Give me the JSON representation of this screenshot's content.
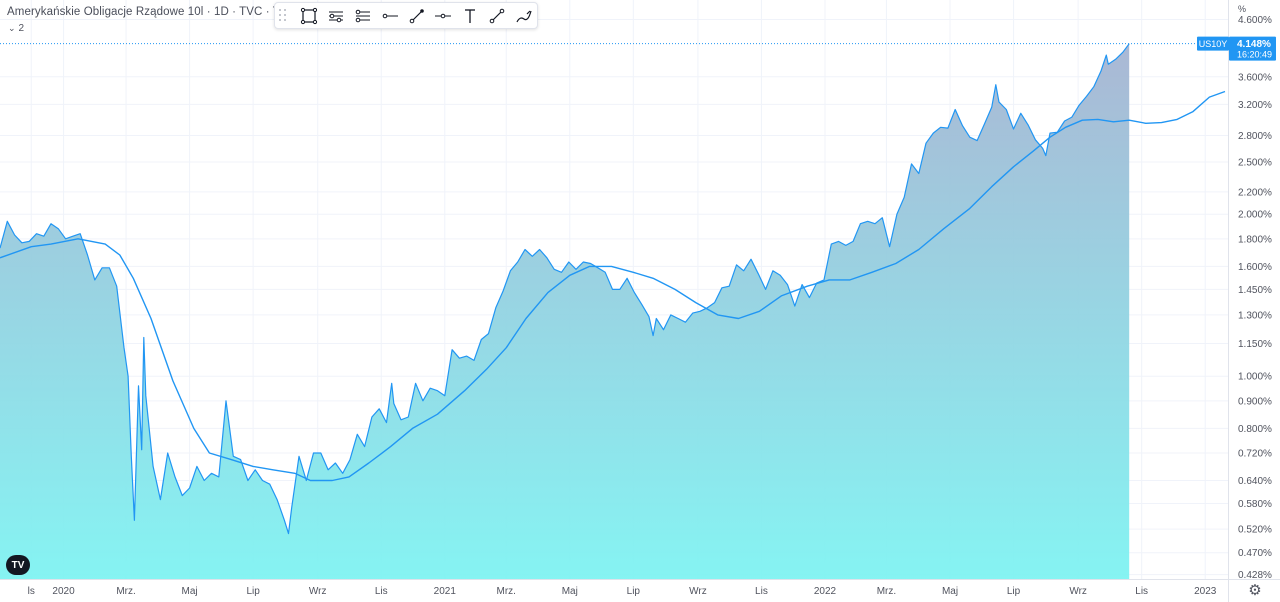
{
  "legend": {
    "title": "Amerykańskie Obligacje Rządowe 10l · 1D · TVC · Trad",
    "collapse_count": "2"
  },
  "toolbar": {
    "tools": [
      "rectangle-tool",
      "long-position-tool",
      "short-position-tool",
      "horizontal-ray-tool",
      "trend-line-tool",
      "horizontal-line-tool",
      "text-tool",
      "ray-tool",
      "brush-tool"
    ]
  },
  "price_axis": {
    "unit": "%",
    "badge_symbol": "US10Y",
    "badge_price": "4.148%",
    "badge_time": "16:20:49",
    "badge_color": "#2196f3"
  },
  "chart_data": {
    "type": "area",
    "series": [
      {
        "name": "US10Y",
        "color": "#2196f3",
        "points": [
          [
            "2019-11-01",
            1.73
          ],
          [
            "2019-11-08",
            1.94
          ],
          [
            "2019-11-15",
            1.83
          ],
          [
            "2019-11-22",
            1.77
          ],
          [
            "2019-11-29",
            1.78
          ],
          [
            "2019-12-06",
            1.84
          ],
          [
            "2019-12-13",
            1.82
          ],
          [
            "2019-12-20",
            1.92
          ],
          [
            "2019-12-27",
            1.88
          ],
          [
            "2020-01-03",
            1.8
          ],
          [
            "2020-01-10",
            1.82
          ],
          [
            "2020-01-17",
            1.84
          ],
          [
            "2020-01-24",
            1.68
          ],
          [
            "2020-01-31",
            1.51
          ],
          [
            "2020-02-07",
            1.59
          ],
          [
            "2020-02-14",
            1.59
          ],
          [
            "2020-02-21",
            1.47
          ],
          [
            "2020-02-28",
            1.13
          ],
          [
            "2020-03-03",
            1.0
          ],
          [
            "2020-03-06",
            0.71
          ],
          [
            "2020-03-09",
            0.54
          ],
          [
            "2020-03-13",
            0.96
          ],
          [
            "2020-03-16",
            0.73
          ],
          [
            "2020-03-18",
            1.18
          ],
          [
            "2020-03-20",
            0.92
          ],
          [
            "2020-03-27",
            0.68
          ],
          [
            "2020-04-03",
            0.59
          ],
          [
            "2020-04-10",
            0.72
          ],
          [
            "2020-04-17",
            0.65
          ],
          [
            "2020-04-24",
            0.6
          ],
          [
            "2020-05-01",
            0.62
          ],
          [
            "2020-05-08",
            0.68
          ],
          [
            "2020-05-15",
            0.64
          ],
          [
            "2020-05-22",
            0.66
          ],
          [
            "2020-05-29",
            0.65
          ],
          [
            "2020-06-05",
            0.9
          ],
          [
            "2020-06-12",
            0.71
          ],
          [
            "2020-06-19",
            0.7
          ],
          [
            "2020-06-26",
            0.64
          ],
          [
            "2020-07-03",
            0.67
          ],
          [
            "2020-07-10",
            0.64
          ],
          [
            "2020-07-17",
            0.63
          ],
          [
            "2020-07-24",
            0.59
          ],
          [
            "2020-07-31",
            0.54
          ],
          [
            "2020-08-04",
            0.51
          ],
          [
            "2020-08-07",
            0.57
          ],
          [
            "2020-08-14",
            0.71
          ],
          [
            "2020-08-21",
            0.64
          ],
          [
            "2020-08-28",
            0.72
          ],
          [
            "2020-09-04",
            0.72
          ],
          [
            "2020-09-11",
            0.67
          ],
          [
            "2020-09-18",
            0.69
          ],
          [
            "2020-09-25",
            0.66
          ],
          [
            "2020-10-02",
            0.7
          ],
          [
            "2020-10-09",
            0.78
          ],
          [
            "2020-10-16",
            0.74
          ],
          [
            "2020-10-23",
            0.84
          ],
          [
            "2020-10-30",
            0.87
          ],
          [
            "2020-11-06",
            0.82
          ],
          [
            "2020-11-11",
            0.97
          ],
          [
            "2020-11-13",
            0.89
          ],
          [
            "2020-11-20",
            0.83
          ],
          [
            "2020-11-27",
            0.84
          ],
          [
            "2020-12-04",
            0.97
          ],
          [
            "2020-12-11",
            0.9
          ],
          [
            "2020-12-18",
            0.95
          ],
          [
            "2020-12-25",
            0.94
          ],
          [
            "2021-01-01",
            0.92
          ],
          [
            "2021-01-08",
            1.12
          ],
          [
            "2021-01-15",
            1.08
          ],
          [
            "2021-01-22",
            1.09
          ],
          [
            "2021-01-29",
            1.07
          ],
          [
            "2021-02-05",
            1.17
          ],
          [
            "2021-02-12",
            1.2
          ],
          [
            "2021-02-19",
            1.34
          ],
          [
            "2021-02-26",
            1.44
          ],
          [
            "2021-03-05",
            1.57
          ],
          [
            "2021-03-12",
            1.63
          ],
          [
            "2021-03-19",
            1.72
          ],
          [
            "2021-03-26",
            1.67
          ],
          [
            "2021-04-02",
            1.72
          ],
          [
            "2021-04-09",
            1.66
          ],
          [
            "2021-04-16",
            1.58
          ],
          [
            "2021-04-23",
            1.56
          ],
          [
            "2021-04-30",
            1.63
          ],
          [
            "2021-05-07",
            1.58
          ],
          [
            "2021-05-14",
            1.63
          ],
          [
            "2021-05-21",
            1.62
          ],
          [
            "2021-05-28",
            1.59
          ],
          [
            "2021-06-04",
            1.56
          ],
          [
            "2021-06-11",
            1.45
          ],
          [
            "2021-06-18",
            1.45
          ],
          [
            "2021-06-25",
            1.52
          ],
          [
            "2021-07-02",
            1.43
          ],
          [
            "2021-07-09",
            1.36
          ],
          [
            "2021-07-16",
            1.29
          ],
          [
            "2021-07-20",
            1.19
          ],
          [
            "2021-07-23",
            1.28
          ],
          [
            "2021-07-30",
            1.22
          ],
          [
            "2021-08-06",
            1.3
          ],
          [
            "2021-08-13",
            1.28
          ],
          [
            "2021-08-20",
            1.26
          ],
          [
            "2021-08-27",
            1.31
          ],
          [
            "2021-09-03",
            1.32
          ],
          [
            "2021-09-10",
            1.34
          ],
          [
            "2021-09-17",
            1.37
          ],
          [
            "2021-09-24",
            1.46
          ],
          [
            "2021-10-01",
            1.47
          ],
          [
            "2021-10-08",
            1.61
          ],
          [
            "2021-10-15",
            1.57
          ],
          [
            "2021-10-22",
            1.65
          ],
          [
            "2021-10-29",
            1.55
          ],
          [
            "2021-11-05",
            1.45
          ],
          [
            "2021-11-12",
            1.57
          ],
          [
            "2021-11-19",
            1.54
          ],
          [
            "2021-11-26",
            1.48
          ],
          [
            "2021-12-03",
            1.35
          ],
          [
            "2021-12-10",
            1.48
          ],
          [
            "2021-12-17",
            1.4
          ],
          [
            "2021-12-24",
            1.49
          ],
          [
            "2021-12-31",
            1.51
          ],
          [
            "2022-01-07",
            1.76
          ],
          [
            "2022-01-14",
            1.78
          ],
          [
            "2022-01-21",
            1.75
          ],
          [
            "2022-01-28",
            1.78
          ],
          [
            "2022-02-04",
            1.92
          ],
          [
            "2022-02-11",
            1.94
          ],
          [
            "2022-02-18",
            1.92
          ],
          [
            "2022-02-25",
            1.97
          ],
          [
            "2022-03-04",
            1.74
          ],
          [
            "2022-03-11",
            2.0
          ],
          [
            "2022-03-18",
            2.15
          ],
          [
            "2022-03-25",
            2.48
          ],
          [
            "2022-04-01",
            2.38
          ],
          [
            "2022-04-08",
            2.71
          ],
          [
            "2022-04-15",
            2.83
          ],
          [
            "2022-04-22",
            2.9
          ],
          [
            "2022-04-29",
            2.89
          ],
          [
            "2022-05-06",
            3.13
          ],
          [
            "2022-05-13",
            2.92
          ],
          [
            "2022-05-20",
            2.78
          ],
          [
            "2022-05-27",
            2.74
          ],
          [
            "2022-06-03",
            2.94
          ],
          [
            "2022-06-10",
            3.16
          ],
          [
            "2022-06-14",
            3.48
          ],
          [
            "2022-06-17",
            3.23
          ],
          [
            "2022-06-24",
            3.13
          ],
          [
            "2022-07-01",
            2.88
          ],
          [
            "2022-07-08",
            3.08
          ],
          [
            "2022-07-15",
            2.93
          ],
          [
            "2022-07-22",
            2.75
          ],
          [
            "2022-07-29",
            2.65
          ],
          [
            "2022-08-01",
            2.57
          ],
          [
            "2022-08-05",
            2.83
          ],
          [
            "2022-08-12",
            2.84
          ],
          [
            "2022-08-19",
            2.98
          ],
          [
            "2022-08-26",
            3.03
          ],
          [
            "2022-09-02",
            3.19
          ],
          [
            "2022-09-09",
            3.31
          ],
          [
            "2022-09-16",
            3.45
          ],
          [
            "2022-09-23",
            3.69
          ],
          [
            "2022-09-28",
            3.95
          ],
          [
            "2022-09-30",
            3.8
          ],
          [
            "2022-10-07",
            3.88
          ],
          [
            "2022-10-14",
            4.0
          ],
          [
            "2022-10-20",
            4.148
          ]
        ]
      },
      {
        "name": "",
        "color": "#2196f3",
        "points": [
          [
            "2019-11-01",
            1.66
          ],
          [
            "2019-12-01",
            1.74
          ],
          [
            "2019-12-20",
            1.76
          ],
          [
            "2020-01-15",
            1.8
          ],
          [
            "2020-02-10",
            1.76
          ],
          [
            "2020-02-24",
            1.68
          ],
          [
            "2020-03-08",
            1.52
          ],
          [
            "2020-03-25",
            1.28
          ],
          [
            "2020-04-15",
            0.98
          ],
          [
            "2020-05-05",
            0.8
          ],
          [
            "2020-05-20",
            0.72
          ],
          [
            "2020-06-10",
            0.7
          ],
          [
            "2020-07-01",
            0.68
          ],
          [
            "2020-07-20",
            0.67
          ],
          [
            "2020-08-10",
            0.66
          ],
          [
            "2020-08-25",
            0.64
          ],
          [
            "2020-09-15",
            0.64
          ],
          [
            "2020-10-01",
            0.65
          ],
          [
            "2020-10-20",
            0.69
          ],
          [
            "2020-11-10",
            0.74
          ],
          [
            "2020-12-01",
            0.8
          ],
          [
            "2020-12-25",
            0.85
          ],
          [
            "2021-01-20",
            0.94
          ],
          [
            "2021-02-10",
            1.03
          ],
          [
            "2021-03-01",
            1.13
          ],
          [
            "2021-03-20",
            1.28
          ],
          [
            "2021-04-10",
            1.43
          ],
          [
            "2021-05-01",
            1.54
          ],
          [
            "2021-05-20",
            1.6
          ],
          [
            "2021-06-10",
            1.6
          ],
          [
            "2021-07-01",
            1.56
          ],
          [
            "2021-07-20",
            1.52
          ],
          [
            "2021-08-10",
            1.45
          ],
          [
            "2021-08-30",
            1.37
          ],
          [
            "2021-09-20",
            1.3
          ],
          [
            "2021-10-10",
            1.28
          ],
          [
            "2021-10-30",
            1.32
          ],
          [
            "2021-11-20",
            1.41
          ],
          [
            "2021-12-15",
            1.47
          ],
          [
            "2022-01-05",
            1.51
          ],
          [
            "2022-01-25",
            1.51
          ],
          [
            "2022-02-15",
            1.56
          ],
          [
            "2022-03-10",
            1.62
          ],
          [
            "2022-04-01",
            1.72
          ],
          [
            "2022-04-25",
            1.88
          ],
          [
            "2022-05-20",
            2.05
          ],
          [
            "2022-06-10",
            2.25
          ],
          [
            "2022-07-01",
            2.45
          ],
          [
            "2022-07-20",
            2.62
          ],
          [
            "2022-08-05",
            2.78
          ],
          [
            "2022-08-20",
            2.9
          ],
          [
            "2022-09-05",
            2.99
          ],
          [
            "2022-09-20",
            3.0
          ],
          [
            "2022-10-05",
            2.97
          ],
          [
            "2022-10-20",
            2.99
          ],
          [
            "2022-11-05",
            2.95
          ],
          [
            "2022-11-20",
            2.96
          ],
          [
            "2022-12-05",
            3.0
          ],
          [
            "2022-12-20",
            3.1
          ],
          [
            "2023-01-05",
            3.3
          ],
          [
            "2023-01-20",
            3.38
          ]
        ]
      }
    ],
    "x_axis_dates": [
      "2019-11-01",
      "2023-01-20"
    ],
    "x_ticks": [
      {
        "label": "ls",
        "date": "2019-12-01"
      },
      {
        "label": "2020",
        "date": "2020-01-01"
      },
      {
        "label": "Mrz.",
        "date": "2020-03-01"
      },
      {
        "label": "Maj",
        "date": "2020-05-01"
      },
      {
        "label": "Lip",
        "date": "2020-07-01"
      },
      {
        "label": "Wrz",
        "date": "2020-09-01"
      },
      {
        "label": "Lis",
        "date": "2020-11-01"
      },
      {
        "label": "2021",
        "date": "2021-01-01"
      },
      {
        "label": "Mrz.",
        "date": "2021-03-01"
      },
      {
        "label": "Maj",
        "date": "2021-05-01"
      },
      {
        "label": "Lip",
        "date": "2021-07-01"
      },
      {
        "label": "Wrz",
        "date": "2021-09-01"
      },
      {
        "label": "Lis",
        "date": "2021-11-01"
      },
      {
        "label": "2022",
        "date": "2022-01-01"
      },
      {
        "label": "Mrz.",
        "date": "2022-03-01"
      },
      {
        "label": "Maj",
        "date": "2022-05-01"
      },
      {
        "label": "Lip",
        "date": "2022-07-01"
      },
      {
        "label": "Wrz",
        "date": "2022-09-01"
      },
      {
        "label": "Lis",
        "date": "2022-11-01"
      },
      {
        "label": "2023",
        "date": "2023-01-01"
      }
    ],
    "y_scale": "log",
    "y_ticks": [
      {
        "label": "4.600%",
        "value": 4.6
      },
      {
        "label": "3.600%",
        "value": 3.6
      },
      {
        "label": "3.200%",
        "value": 3.2
      },
      {
        "label": "2.800%",
        "value": 2.8
      },
      {
        "label": "2.500%",
        "value": 2.5
      },
      {
        "label": "2.200%",
        "value": 2.2
      },
      {
        "label": "2.000%",
        "value": 2.0
      },
      {
        "label": "1.800%",
        "value": 1.8
      },
      {
        "label": "1.600%",
        "value": 1.6
      },
      {
        "label": "1.450%",
        "value": 1.45
      },
      {
        "label": "1.300%",
        "value": 1.3
      },
      {
        "label": "1.150%",
        "value": 1.15
      },
      {
        "label": "1.000%",
        "value": 1.0
      },
      {
        "label": "0.900%",
        "value": 0.9
      },
      {
        "label": "0.800%",
        "value": 0.8
      },
      {
        "label": "0.720%",
        "value": 0.72
      },
      {
        "label": "0.640%",
        "value": 0.64
      },
      {
        "label": "0.580%",
        "value": 0.58
      },
      {
        "label": "0.520%",
        "value": 0.52
      },
      {
        "label": "0.470%",
        "value": 0.47
      },
      {
        "label": "0.428%",
        "value": 0.428
      }
    ],
    "ylim": [
      0.42,
      4.75
    ],
    "area_gradient": [
      "#7ff1f1",
      "#aab5d0"
    ],
    "grid": true
  }
}
